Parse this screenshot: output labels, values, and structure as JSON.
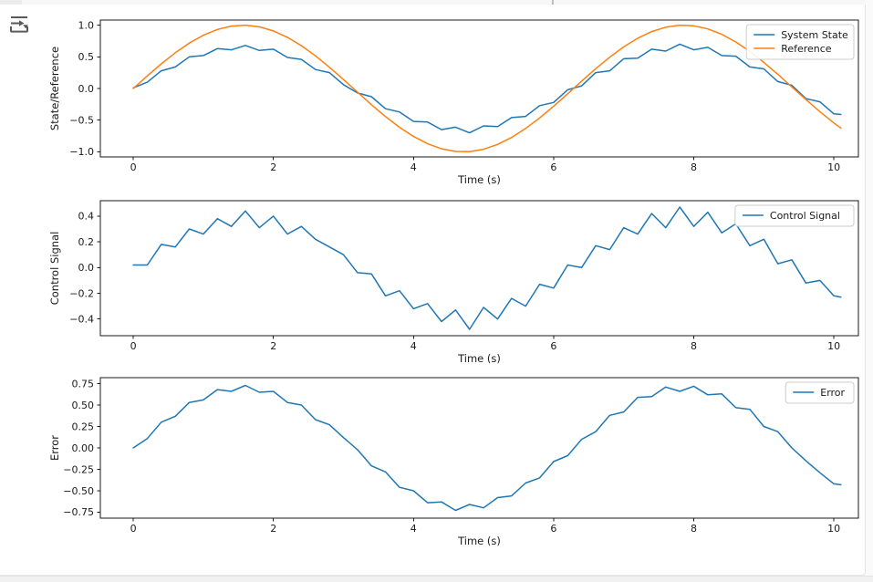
{
  "window": {
    "kind": "notebook-cell-output",
    "colors": {
      "series_blue": "#1f77b4",
      "series_orange": "#ff7f0e",
      "spine": "#1a1a1a",
      "legend_edge": "#cccccc"
    }
  },
  "icons": {
    "collapse_output": "arrow-right-with-caret-into-bracket"
  },
  "chart_data": {
    "type": "line",
    "x_axis_label": "Time (s)",
    "x": [
      0,
      0.2,
      0.4,
      0.6,
      0.8,
      1.0,
      1.2,
      1.4,
      1.6,
      1.8,
      2.0,
      2.2,
      2.4,
      2.6,
      2.8,
      3.0,
      3.2,
      3.4,
      3.6,
      3.8,
      4.0,
      4.2,
      4.4,
      4.6,
      4.8,
      5.0,
      5.2,
      5.4,
      5.6,
      5.8,
      6.0,
      6.2,
      6.4,
      6.6,
      6.8,
      7.0,
      7.2,
      7.4,
      7.6,
      7.8,
      8.0,
      8.2,
      8.4,
      8.6,
      8.8,
      9.0,
      9.2,
      9.4,
      9.6,
      9.8,
      10.0,
      10.1
    ],
    "plots": [
      {
        "ylabel": "State/Reference",
        "xlabel": "Time (s)",
        "xlim": [
          -0.47,
          10.35
        ],
        "ylim": [
          -1.08,
          1.08
        ],
        "xticks": [
          0,
          2,
          4,
          6,
          8,
          10
        ],
        "ytick_values": [
          1.0,
          0.5,
          0.0,
          -0.5,
          -1.0
        ],
        "ytick_labels": [
          "1.0",
          "0.5",
          "0.0",
          "−0.5",
          "−1.0"
        ],
        "legend_position": "upper right",
        "series": [
          {
            "name": "System State",
            "color": "#1f77b4",
            "values": [
              0.01,
              0.1,
              0.28,
              0.34,
              0.5,
              0.52,
              0.63,
              0.61,
              0.68,
              0.6,
              0.62,
              0.49,
              0.46,
              0.3,
              0.25,
              0.06,
              -0.07,
              -0.13,
              -0.32,
              -0.37,
              -0.52,
              -0.53,
              -0.65,
              -0.61,
              -0.7,
              -0.59,
              -0.6,
              -0.46,
              -0.44,
              -0.27,
              -0.22,
              -0.02,
              0.04,
              0.25,
              0.28,
              0.47,
              0.48,
              0.62,
              0.59,
              0.7,
              0.61,
              0.65,
              0.52,
              0.51,
              0.34,
              0.31,
              0.11,
              0.05,
              -0.16,
              -0.21,
              -0.4,
              -0.41
            ]
          },
          {
            "name": "Reference",
            "color": "#ff7f0e",
            "values": [
              0.0,
              0.199,
              0.389,
              0.565,
              0.717,
              0.841,
              0.932,
              0.985,
              1.0,
              0.974,
              0.909,
              0.808,
              0.675,
              0.516,
              0.335,
              0.141,
              -0.058,
              -0.256,
              -0.443,
              -0.612,
              -0.757,
              -0.872,
              -0.952,
              -0.994,
              -0.996,
              -0.959,
              -0.883,
              -0.773,
              -0.631,
              -0.465,
              -0.279,
              -0.083,
              0.116,
              0.312,
              0.494,
              0.657,
              0.794,
              0.899,
              0.968,
              0.999,
              0.989,
              0.94,
              0.855,
              0.734,
              0.585,
              0.412,
              0.223,
              0.025,
              -0.174,
              -0.366,
              -0.544,
              -0.625
            ]
          }
        ]
      },
      {
        "ylabel": "Control Signal",
        "xlabel": "Time (s)",
        "xlim": [
          -0.47,
          10.35
        ],
        "ylim": [
          -0.53,
          0.52
        ],
        "xticks": [
          0,
          2,
          4,
          6,
          8,
          10
        ],
        "ytick_values": [
          0.4,
          0.2,
          0.0,
          -0.2,
          -0.4
        ],
        "ytick_labels": [
          "0.4",
          "0.2",
          "0.0",
          "−0.2",
          "−0.4"
        ],
        "legend_position": "upper right",
        "series": [
          {
            "name": "Control Signal",
            "color": "#1f77b4",
            "values": [
              0.02,
              0.02,
              0.18,
              0.16,
              0.3,
              0.26,
              0.38,
              0.32,
              0.44,
              0.31,
              0.4,
              0.26,
              0.32,
              0.22,
              0.16,
              0.1,
              -0.04,
              -0.05,
              -0.22,
              -0.18,
              -0.32,
              -0.28,
              -0.42,
              -0.33,
              -0.48,
              -0.31,
              -0.4,
              -0.24,
              -0.3,
              -0.13,
              -0.16,
              0.02,
              0.0,
              0.17,
              0.14,
              0.31,
              0.26,
              0.42,
              0.31,
              0.47,
              0.32,
              0.43,
              0.27,
              0.34,
              0.17,
              0.22,
              0.03,
              0.06,
              -0.12,
              -0.1,
              -0.22,
              -0.23
            ]
          }
        ]
      },
      {
        "ylabel": "Error",
        "xlabel": "Time (s)",
        "xlim": [
          -0.47,
          10.35
        ],
        "ylim": [
          -0.82,
          0.82
        ],
        "xticks": [
          0,
          2,
          4,
          6,
          8,
          10
        ],
        "ytick_values": [
          0.75,
          0.5,
          0.25,
          0.0,
          -0.25,
          -0.5,
          -0.75
        ],
        "ytick_labels": [
          "0.75",
          "0.50",
          "0.25",
          "0.00",
          "−0.25",
          "−0.50",
          "−0.75"
        ],
        "legend_position": "upper right",
        "series": [
          {
            "name": "Error",
            "color": "#1f77b4",
            "values": [
              0.0,
              0.11,
              0.3,
              0.37,
              0.53,
              0.56,
              0.68,
              0.66,
              0.73,
              0.65,
              0.66,
              0.53,
              0.5,
              0.33,
              0.27,
              0.12,
              -0.02,
              -0.21,
              -0.28,
              -0.46,
              -0.5,
              -0.64,
              -0.63,
              -0.73,
              -0.66,
              -0.7,
              -0.58,
              -0.56,
              -0.41,
              -0.35,
              -0.16,
              -0.09,
              0.1,
              0.19,
              0.38,
              0.42,
              0.59,
              0.6,
              0.71,
              0.66,
              0.72,
              0.62,
              0.63,
              0.47,
              0.45,
              0.25,
              0.19,
              0.0,
              -0.15,
              -0.29,
              -0.42,
              -0.43
            ]
          }
        ]
      }
    ]
  }
}
